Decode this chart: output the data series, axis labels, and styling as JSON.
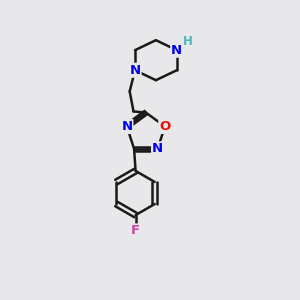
{
  "bg_color": "#e8e8eb",
  "bond_color": "#1a1a1a",
  "bond_width": 1.8,
  "N_color": "#0000ee",
  "O_color": "#ee1100",
  "F_color": "#cc44aa",
  "H_color": "#4ab8b8",
  "font_size_atom": 9.5,
  "fig_size": [
    3.0,
    3.0
  ],
  "dpi": 100,
  "xlim": [
    0,
    10
  ],
  "ylim": [
    0,
    10
  ]
}
